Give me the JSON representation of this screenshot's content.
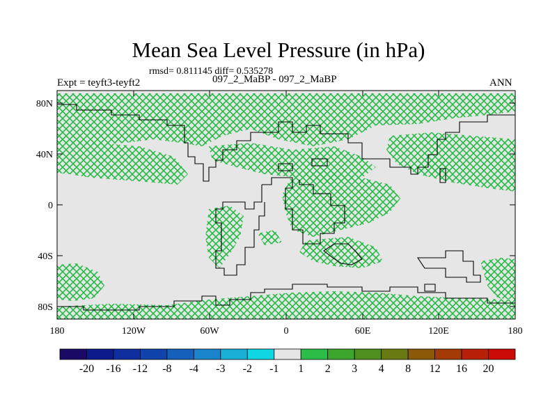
{
  "plot": {
    "title": "Mean Sea Level Pressure (in hPa)",
    "stats": "rmsd= 0.811145 diff= 0.535278",
    "experiment": "Expt = teyft3-teyft2",
    "subtitle": "097_2_MaBP - 097_2_MaBP",
    "season": "ANN"
  },
  "axes": {
    "lat_labels": [
      "80N",
      "40N",
      "0",
      "40S",
      "80S"
    ],
    "lon_labels": [
      "180",
      "120W",
      "60W",
      "0",
      "60E",
      "120E",
      "180"
    ]
  },
  "colorbar": {
    "labels": [
      "-20",
      "-16",
      "-12",
      "-8",
      "-4",
      "-3",
      "-2",
      "-1",
      "1",
      "2",
      "3",
      "4",
      "8",
      "12",
      "16",
      "20"
    ],
    "colors": [
      "#1a0a66",
      "#0d1a8c",
      "#0f2e9e",
      "#1144aa",
      "#1560bb",
      "#1a85cc",
      "#19b0d8",
      "#0fd6e3",
      "#e6e6e6",
      "#2bbd48",
      "#3da52c",
      "#4e8f1e",
      "#6a7a12",
      "#8a5a08",
      "#a43a06",
      "#b8200a",
      "#cc0b06"
    ]
  },
  "colors": {
    "land_background": "#e6e6e6",
    "hatch": "#22bb44",
    "coast": "#000000"
  }
}
